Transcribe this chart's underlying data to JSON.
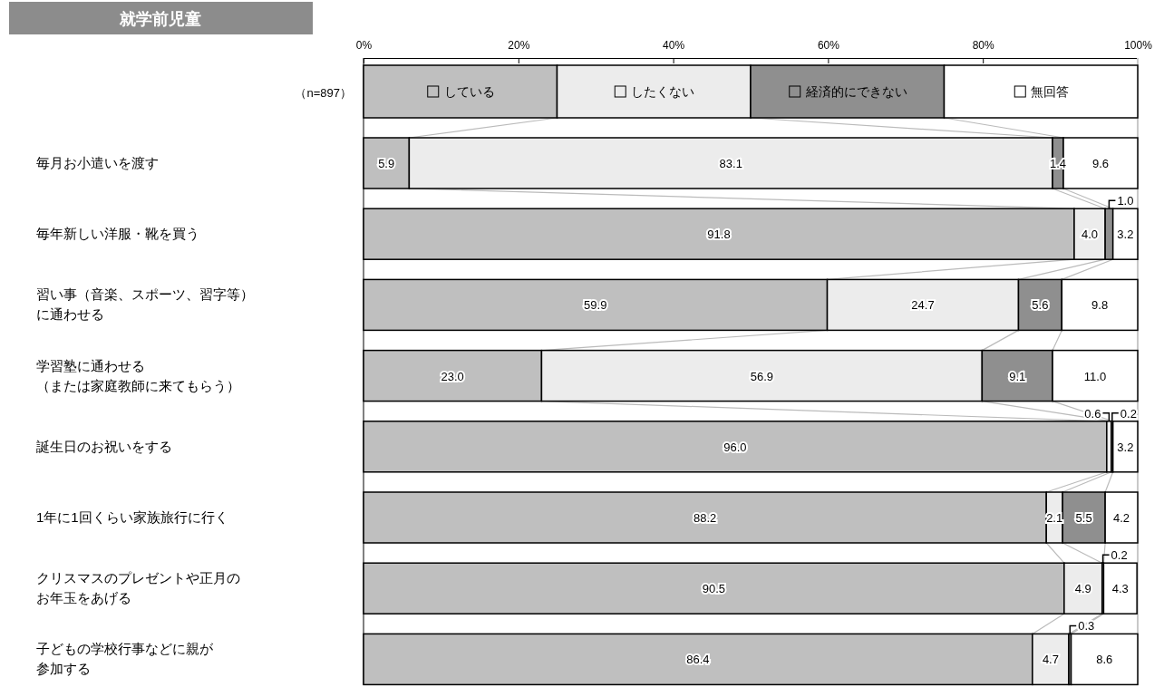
{
  "chart_data": {
    "type": "bar",
    "orientation": "horizontal",
    "stacked": true,
    "title": "就学前児童",
    "annotations": [
      "（n=897）"
    ],
    "categories": [
      "毎月お小遣いを渡す",
      "毎年新しい洋服・靴を買う",
      "習い事（音楽、スポーツ、習字等）に通わせる",
      "学習塾に通わせる（または家庭教師に来てもらう）",
      "誕生日のお祝いをする",
      "1年に1回くらい家族旅行に行く",
      "クリスマスのプレゼントや正月のお年玉をあげる",
      "子どもの学校行事などに親が参加する"
    ],
    "series": [
      {
        "name": "している",
        "color": "#bfbfbf",
        "values": [
          5.9,
          91.8,
          59.9,
          23.0,
          96.0,
          88.2,
          90.5,
          86.4
        ],
        "value_labels": [
          "5.9",
          "91.8",
          "59.9",
          "23.0",
          "96.0",
          "88.2",
          "90.5",
          "86.4"
        ]
      },
      {
        "name": "したくない",
        "color": "#ececec",
        "values": [
          83.1,
          4.0,
          24.7,
          56.9,
          0.6,
          2.1,
          4.9,
          4.7
        ],
        "value_labels": [
          "83.1",
          "4.0",
          "24.7",
          "56.9",
          "0.6",
          "2.1",
          "4.9",
          "4.7"
        ]
      },
      {
        "name": "経済的にできない",
        "color": "#8f8f8f",
        "values": [
          1.4,
          1.0,
          5.6,
          9.1,
          0.2,
          5.5,
          0.2,
          0.3
        ],
        "value_labels": [
          "1.4",
          "1.0",
          "5.6",
          "9.1",
          "0.2",
          "5.5",
          "0.2",
          "0.3"
        ]
      },
      {
        "name": "無回答",
        "color": "#ffffff",
        "values": [
          9.6,
          3.2,
          9.8,
          11.0,
          3.2,
          4.2,
          4.3,
          8.6
        ],
        "value_labels": [
          "9.6",
          "3.2",
          "9.8",
          "11.0",
          "3.2",
          "4.2",
          "4.3",
          "8.6"
        ]
      }
    ],
    "xlim": [
      0,
      100
    ],
    "xticks": [
      {
        "value": 0,
        "label": "0%"
      },
      {
        "value": 20,
        "label": "20%"
      },
      {
        "value": 40,
        "label": "40%"
      },
      {
        "value": 60,
        "label": "60%"
      },
      {
        "value": 80,
        "label": "80%"
      },
      {
        "value": 100,
        "label": "100%"
      }
    ],
    "legend": "top"
  }
}
